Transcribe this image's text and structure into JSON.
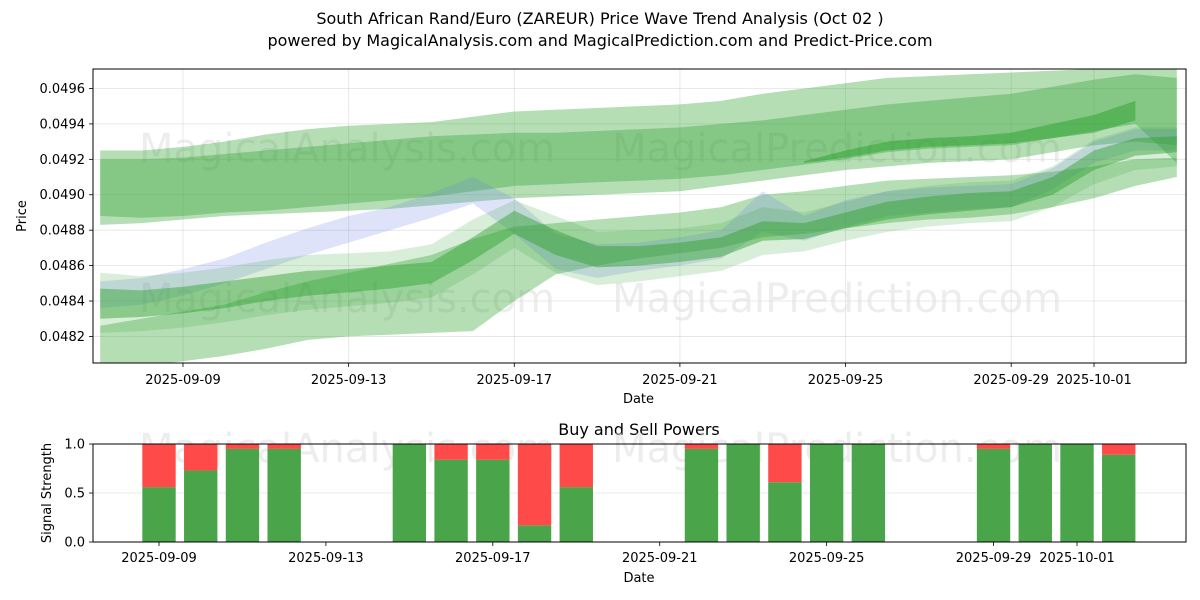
{
  "title_line1": "South African Rand/Euro (ZAREUR) Price Wave Trend Analysis (Oct 02 )",
  "title_line2": "powered by MagicalAnalysis.com and MagicalPrediction.com and Predict-Price.com",
  "watermarks": [
    "MagicalAnalysis.com",
    "MagicalPrediction.com"
  ],
  "colors": {
    "green": "#2ca02c",
    "blue": "#6a7ee8",
    "buy": "#4aa44a",
    "sell": "#ff4a4a"
  },
  "chart_data": [
    {
      "type": "area",
      "title": "",
      "xlabel": "Date",
      "ylabel": "Price",
      "xlim": [
        "2025-09-06.8",
        "2025-10-03.2"
      ],
      "ylim": [
        0.04805,
        0.04971
      ],
      "yticks": [
        "0.0482",
        "0.0484",
        "0.0486",
        "0.0488",
        "0.0490",
        "0.0492",
        "0.0494",
        "0.0496"
      ],
      "xticks": [
        "2025-09-09",
        "2025-09-13",
        "2025-09-17",
        "2025-09-21",
        "2025-09-25",
        "2025-09-29",
        "2025-10-01"
      ],
      "grid": true,
      "x": [
        "2025-09-07",
        "2025-09-08",
        "2025-09-09",
        "2025-09-10",
        "2025-09-11",
        "2025-09-12",
        "2025-09-13",
        "2025-09-14",
        "2025-09-15",
        "2025-09-16",
        "2025-09-17",
        "2025-09-18",
        "2025-09-19",
        "2025-09-20",
        "2025-09-21",
        "2025-09-22",
        "2025-09-23",
        "2025-09-24",
        "2025-09-25",
        "2025-09-26",
        "2025-09-27",
        "2025-09-28",
        "2025-09-29",
        "2025-09-30",
        "2025-10-01",
        "2025-10-02",
        "2025-10-03"
      ],
      "series": [
        {
          "name": "upper-channel-outer",
          "color": "green",
          "opacity": 0.35,
          "upper": [
            0.04925,
            0.04925,
            0.04927,
            0.0493,
            0.04934,
            0.04937,
            0.04939,
            0.0494,
            0.04941,
            0.04944,
            0.04947,
            0.04948,
            0.04949,
            0.0495,
            0.04951,
            0.04953,
            0.04957,
            0.0496,
            0.04963,
            0.04966,
            0.04967,
            0.04968,
            0.04969,
            0.0497,
            0.04971,
            0.04972,
            0.04972
          ],
          "lower": [
            0.04888,
            0.04887,
            0.04888,
            0.0489,
            0.04891,
            0.04893,
            0.04895,
            0.04897,
            0.04899,
            0.04902,
            0.04905,
            0.04906,
            0.04907,
            0.04908,
            0.04909,
            0.04911,
            0.04914,
            0.04917,
            0.0492,
            0.04924,
            0.04926,
            0.04927,
            0.04928,
            0.04932,
            0.04936,
            0.0494,
            0.04918
          ]
        },
        {
          "name": "upper-channel-inner",
          "color": "green",
          "opacity": 0.35,
          "upper": [
            0.0492,
            0.0492,
            0.04921,
            0.04923,
            0.04925,
            0.04927,
            0.04929,
            0.04931,
            0.04933,
            0.04934,
            0.04935,
            0.04935,
            0.04936,
            0.04937,
            0.04938,
            0.0494,
            0.04942,
            0.04945,
            0.04948,
            0.04951,
            0.04953,
            0.04955,
            0.04957,
            0.04961,
            0.04965,
            0.04968,
            0.04966
          ],
          "lower": [
            0.04883,
            0.04884,
            0.04886,
            0.04888,
            0.04889,
            0.0489,
            0.04891,
            0.04892,
            0.04894,
            0.04896,
            0.04898,
            0.04899,
            0.049,
            0.04901,
            0.04902,
            0.04905,
            0.04908,
            0.04911,
            0.04914,
            0.04916,
            0.04918,
            0.04919,
            0.0492,
            0.04924,
            0.04928,
            0.0493,
            0.04928
          ]
        },
        {
          "name": "lower-channel-outer",
          "color": "green",
          "opacity": 0.35,
          "upper": [
            0.04826,
            0.0483,
            0.04834,
            0.04838,
            0.04845,
            0.04851,
            0.04856,
            0.04861,
            0.04866,
            0.04875,
            0.04882,
            0.04884,
            0.04886,
            0.04888,
            0.0489,
            0.04893,
            0.049,
            0.04902,
            0.04905,
            0.04908,
            0.04909,
            0.0491,
            0.04911,
            0.04913,
            0.04916,
            0.0492,
            0.04921
          ],
          "lower": [
            0.048,
            0.04803,
            0.04806,
            0.04809,
            0.04813,
            0.04818,
            0.0482,
            0.04821,
            0.04822,
            0.04823,
            0.0484,
            0.04855,
            0.0486,
            0.04864,
            0.04867,
            0.0487,
            0.04876,
            0.04878,
            0.04881,
            0.04884,
            0.04886,
            0.04887,
            0.04889,
            0.04893,
            0.04898,
            0.04905,
            0.0491
          ]
        },
        {
          "name": "blue-wave",
          "color": "blue",
          "opacity": 0.22,
          "upper": [
            0.04851,
            0.04853,
            0.04858,
            0.04864,
            0.04873,
            0.04881,
            0.04888,
            0.04893,
            0.04901,
            0.0491,
            0.04898,
            0.04878,
            0.04872,
            0.04873,
            0.04876,
            0.0488,
            0.04902,
            0.04888,
            0.04897,
            0.04902,
            0.04904,
            0.04905,
            0.04906,
            0.04915,
            0.0493,
            0.04937,
            0.04937
          ],
          "lower": [
            0.04836,
            0.04838,
            0.04843,
            0.0485,
            0.04858,
            0.04866,
            0.04873,
            0.0488,
            0.04887,
            0.04895,
            0.04878,
            0.04858,
            0.04853,
            0.04857,
            0.0486,
            0.04864,
            0.04879,
            0.04874,
            0.04882,
            0.04888,
            0.0489,
            0.04892,
            0.04893,
            0.04903,
            0.04918,
            0.04925,
            0.04925
          ]
        },
        {
          "name": "price-wave-main",
          "color": "green",
          "opacity": 0.45,
          "upper": [
            0.04847,
            0.04846,
            0.04848,
            0.04851,
            0.04854,
            0.04857,
            0.04858,
            0.0486,
            0.04862,
            0.04876,
            0.04891,
            0.0488,
            0.04871,
            0.04871,
            0.04873,
            0.04876,
            0.04885,
            0.04884,
            0.0489,
            0.04896,
            0.04899,
            0.04901,
            0.04902,
            0.0491,
            0.04925,
            0.04932,
            0.04933
          ],
          "lower": [
            0.0483,
            0.04831,
            0.04833,
            0.04836,
            0.0484,
            0.04843,
            0.04845,
            0.04847,
            0.0485,
            0.04863,
            0.04878,
            0.04866,
            0.04859,
            0.0486,
            0.04862,
            0.04865,
            0.04874,
            0.04875,
            0.04881,
            0.04886,
            0.04889,
            0.04891,
            0.04893,
            0.049,
            0.04914,
            0.04922,
            0.04924
          ]
        },
        {
          "name": "price-wave-halo",
          "color": "green",
          "opacity": 0.18,
          "upper": [
            0.04856,
            0.04854,
            0.04856,
            0.04859,
            0.04863,
            0.04866,
            0.04867,
            0.04868,
            0.04872,
            0.04886,
            0.04897,
            0.04888,
            0.04879,
            0.0488,
            0.04881,
            0.04884,
            0.04893,
            0.0489,
            0.04896,
            0.04902,
            0.04905,
            0.04907,
            0.04908,
            0.04916,
            0.04931,
            0.04938,
            0.04938
          ],
          "lower": [
            0.04822,
            0.04823,
            0.04825,
            0.04828,
            0.04832,
            0.04835,
            0.04837,
            0.04839,
            0.04842,
            0.04855,
            0.0487,
            0.04856,
            0.04849,
            0.04851,
            0.04854,
            0.04857,
            0.04866,
            0.04868,
            0.04874,
            0.04879,
            0.04882,
            0.04884,
            0.04885,
            0.04893,
            0.04906,
            0.04914,
            0.04916
          ]
        },
        {
          "name": "trend-sliver",
          "color": "green",
          "opacity": 0.5,
          "upper": [
            null,
            null,
            null,
            null,
            null,
            null,
            null,
            null,
            null,
            null,
            null,
            null,
            null,
            null,
            null,
            null,
            null,
            0.04919,
            0.04925,
            0.0493,
            0.04932,
            0.04933,
            0.04935,
            0.0494,
            0.04945,
            0.04953,
            null
          ],
          "lower": [
            null,
            null,
            null,
            null,
            null,
            null,
            null,
            null,
            null,
            null,
            null,
            null,
            null,
            null,
            null,
            null,
            null,
            0.04918,
            0.04921,
            0.04925,
            0.04927,
            0.04928,
            0.04929,
            0.04932,
            0.04935,
            0.04942,
            null
          ]
        }
      ]
    },
    {
      "type": "bar",
      "title": "Buy and Sell Powers",
      "xlabel": "Date",
      "ylabel": "Signal Strength",
      "ylim": [
        0,
        1
      ],
      "yticks": [
        "0.0",
        "0.5",
        "1.0"
      ],
      "xticks": [
        "2025-09-09",
        "2025-09-13",
        "2025-09-17",
        "2025-09-21",
        "2025-09-25",
        "2025-09-29",
        "2025-10-01"
      ],
      "grid": true,
      "categories": [
        "2025-09-09",
        "2025-09-10",
        "2025-09-11",
        "2025-09-12",
        "2025-09-15",
        "2025-09-16",
        "2025-09-17",
        "2025-09-18",
        "2025-09-19",
        "2025-09-22",
        "2025-09-23",
        "2025-09-24",
        "2025-09-25",
        "2025-09-26",
        "2025-09-29",
        "2025-09-30",
        "2025-10-01",
        "2025-10-02"
      ],
      "series": [
        {
          "name": "Buy",
          "color": "buy",
          "values": [
            0.56,
            0.73,
            0.95,
            0.95,
            1.0,
            0.84,
            0.84,
            0.17,
            0.56,
            0.95,
            1.0,
            0.61,
            1.0,
            1.0,
            0.95,
            1.0,
            1.0,
            0.89
          ]
        },
        {
          "name": "Sell",
          "color": "sell",
          "values": [
            0.44,
            0.27,
            0.05,
            0.05,
            0.0,
            0.16,
            0.16,
            0.83,
            0.44,
            0.05,
            0.0,
            0.39,
            0.0,
            0.0,
            0.05,
            0.0,
            0.0,
            0.11
          ]
        }
      ]
    }
  ]
}
